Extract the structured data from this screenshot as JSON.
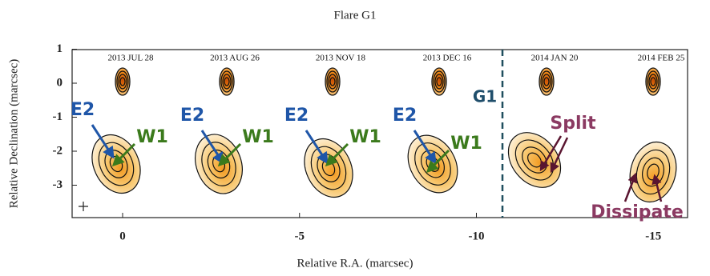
{
  "figure": {
    "title": "Flare G1",
    "x_label": "Relative R.A. (marcsec)",
    "y_label": "Relative Declination (marcsec)",
    "x_ticks": [
      0,
      -5,
      -10,
      -15
    ],
    "y_ticks": [
      1,
      0,
      -1,
      -2,
      -3
    ],
    "panels": [
      "2013 JUL 28",
      "2013 AUG 26",
      "2013 NOV 18",
      "2013 DEC 16",
      "2014 JAN 20",
      "2014 FEB 25"
    ],
    "annotations": {
      "e2": [
        "E2",
        "E2",
        "E2",
        "E2"
      ],
      "w1": [
        "W1",
        "W1",
        "W1",
        "W1"
      ],
      "g1": "G1",
      "split": "Split",
      "dissipate": "Dissipate"
    }
  }
}
